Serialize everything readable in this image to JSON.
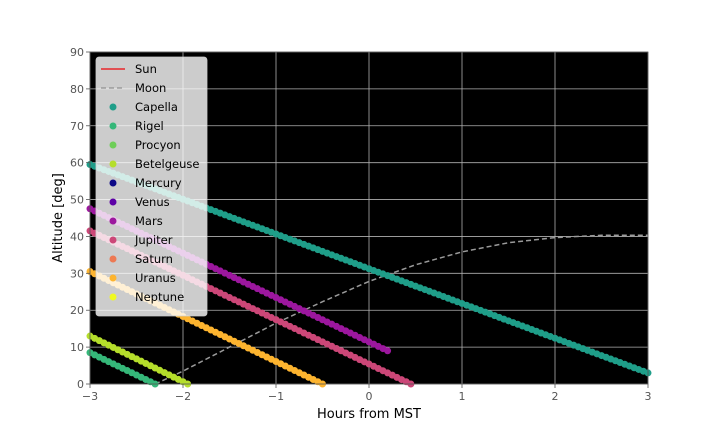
{
  "chart_data": {
    "type": "line",
    "xlabel": "Hours from MST",
    "ylabel": "Altitude [deg]",
    "xlim": [
      -3,
      3
    ],
    "ylim": [
      0,
      90
    ],
    "xticks": [
      -3,
      -2,
      -1,
      0,
      1,
      2,
      3
    ],
    "yticks": [
      0,
      10,
      20,
      30,
      40,
      50,
      60,
      70,
      80,
      90
    ],
    "grid": true,
    "background": "#000000",
    "legend_position": "upper-left",
    "series": [
      {
        "name": "Sun",
        "style": "line",
        "color": "#e8262b",
        "x": [],
        "y": []
      },
      {
        "name": "Moon",
        "style": "dashed",
        "color": "#9a9a9a",
        "x": [
          -2.3,
          -2,
          -1.5,
          -1,
          -0.5,
          0,
          0.5,
          1,
          1.5,
          2,
          2.5,
          3
        ],
        "y": [
          0,
          3.5,
          10,
          16.5,
          22.3,
          27.8,
          32.3,
          35.8,
          38.3,
          39.7,
          40.3,
          40.3
        ]
      },
      {
        "name": "Capella",
        "style": "markers",
        "color": "#1f9e89",
        "x": [
          -3,
          3
        ],
        "y": [
          59.5,
          3
        ]
      },
      {
        "name": "Rigel",
        "style": "markers",
        "color": "#35b779",
        "x": [
          -3,
          -2.3
        ],
        "y": [
          8.5,
          0
        ]
      },
      {
        "name": "Procyon",
        "style": "markers",
        "color": "#6ece58",
        "x": [],
        "y": []
      },
      {
        "name": "Betelgeuse",
        "style": "markers",
        "color": "#b5de2b",
        "x": [
          -3,
          -1.95
        ],
        "y": [
          13,
          0
        ]
      },
      {
        "name": "Mercury",
        "style": "markers",
        "color": "#0d0887",
        "x": [],
        "y": []
      },
      {
        "name": "Venus",
        "style": "markers",
        "color": "#5c01a6",
        "x": [],
        "y": []
      },
      {
        "name": "Mars",
        "style": "markers",
        "color": "#9c179e",
        "x": [
          -3,
          0.2
        ],
        "y": [
          47.5,
          9
        ]
      },
      {
        "name": "Jupiter",
        "style": "markers",
        "color": "#cc4778",
        "x": [
          -3,
          0.45
        ],
        "y": [
          41.5,
          0
        ]
      },
      {
        "name": "Saturn",
        "style": "markers",
        "color": "#ed7953",
        "x": [],
        "y": []
      },
      {
        "name": "Uranus",
        "style": "markers",
        "color": "#fdb42f",
        "x": [
          -3,
          -0.5
        ],
        "y": [
          30.5,
          0
        ]
      },
      {
        "name": "Neptune",
        "style": "markers",
        "color": "#f0f921",
        "x": [],
        "y": []
      }
    ]
  }
}
